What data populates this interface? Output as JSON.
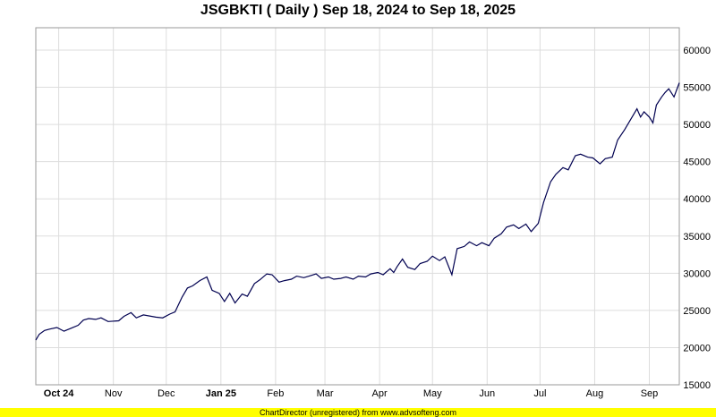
{
  "chart_data": {
    "type": "line",
    "title": "JSGBKTI ( Daily ) Sep 18, 2024 to Sep 18, 2025",
    "xlabel": "",
    "ylabel": "",
    "x_range": [
      "2024-09-18",
      "2025-09-18"
    ],
    "ylim": [
      15000,
      63000
    ],
    "y_ticks": [
      15000,
      20000,
      25000,
      30000,
      35000,
      40000,
      45000,
      50000,
      55000,
      60000
    ],
    "x_ticks": [
      {
        "label": "Oct 24",
        "date": "2024-10-01",
        "bold": true
      },
      {
        "label": "Nov",
        "date": "2024-11-01",
        "bold": false
      },
      {
        "label": "Dec",
        "date": "2024-12-01",
        "bold": false
      },
      {
        "label": "Jan 25",
        "date": "2025-01-01",
        "bold": true
      },
      {
        "label": "Feb",
        "date": "2025-02-01",
        "bold": false
      },
      {
        "label": "Mar",
        "date": "2025-03-01",
        "bold": false
      },
      {
        "label": "Apr",
        "date": "2025-04-01",
        "bold": false
      },
      {
        "label": "May",
        "date": "2025-05-01",
        "bold": false
      },
      {
        "label": "Jun",
        "date": "2025-06-01",
        "bold": false
      },
      {
        "label": "Jul",
        "date": "2025-07-01",
        "bold": false
      },
      {
        "label": "Aug",
        "date": "2025-08-01",
        "bold": false
      },
      {
        "label": "Sep",
        "date": "2025-09-01",
        "bold": false
      }
    ],
    "grid": true,
    "line_color": "#000050",
    "series": [
      {
        "points": [
          [
            "2024-09-18",
            21000
          ],
          [
            "2024-09-20",
            21800
          ],
          [
            "2024-09-23",
            22300
          ],
          [
            "2024-09-26",
            22500
          ],
          [
            "2024-09-30",
            22700
          ],
          [
            "2024-10-04",
            22200
          ],
          [
            "2024-10-08",
            22600
          ],
          [
            "2024-10-12",
            23000
          ],
          [
            "2024-10-15",
            23700
          ],
          [
            "2024-10-18",
            23900
          ],
          [
            "2024-10-22",
            23800
          ],
          [
            "2024-10-25",
            24000
          ],
          [
            "2024-10-29",
            23500
          ],
          [
            "2024-11-04",
            23600
          ],
          [
            "2024-11-07",
            24200
          ],
          [
            "2024-11-11",
            24700
          ],
          [
            "2024-11-14",
            24000
          ],
          [
            "2024-11-18",
            24400
          ],
          [
            "2024-11-25",
            24100
          ],
          [
            "2024-11-29",
            24000
          ],
          [
            "2024-12-03",
            24500
          ],
          [
            "2024-12-06",
            24800
          ],
          [
            "2024-12-10",
            26800
          ],
          [
            "2024-12-13",
            28000
          ],
          [
            "2024-12-16",
            28300
          ],
          [
            "2024-12-20",
            29000
          ],
          [
            "2024-12-24",
            29500
          ],
          [
            "2024-12-27",
            27700
          ],
          [
            "2024-12-31",
            27300
          ],
          [
            "2025-01-03",
            26200
          ],
          [
            "2025-01-06",
            27300
          ],
          [
            "2025-01-09",
            26000
          ],
          [
            "2025-01-13",
            27200
          ],
          [
            "2025-01-16",
            26900
          ],
          [
            "2025-01-20",
            28600
          ],
          [
            "2025-01-23",
            29100
          ],
          [
            "2025-01-27",
            29900
          ],
          [
            "2025-01-30",
            29800
          ],
          [
            "2025-02-03",
            28800
          ],
          [
            "2025-02-06",
            29000
          ],
          [
            "2025-02-10",
            29200
          ],
          [
            "2025-02-13",
            29600
          ],
          [
            "2025-02-17",
            29400
          ],
          [
            "2025-02-20",
            29600
          ],
          [
            "2025-02-24",
            29900
          ],
          [
            "2025-02-27",
            29300
          ],
          [
            "2025-03-03",
            29500
          ],
          [
            "2025-03-06",
            29200
          ],
          [
            "2025-03-10",
            29300
          ],
          [
            "2025-03-13",
            29500
          ],
          [
            "2025-03-17",
            29200
          ],
          [
            "2025-03-20",
            29600
          ],
          [
            "2025-03-24",
            29500
          ],
          [
            "2025-03-27",
            29900
          ],
          [
            "2025-03-31",
            30100
          ],
          [
            "2025-04-03",
            29800
          ],
          [
            "2025-04-07",
            30600
          ],
          [
            "2025-04-09",
            30100
          ],
          [
            "2025-04-11",
            30900
          ],
          [
            "2025-04-14",
            31900
          ],
          [
            "2025-04-17",
            30800
          ],
          [
            "2025-04-21",
            30500
          ],
          [
            "2025-04-24",
            31300
          ],
          [
            "2025-04-28",
            31600
          ],
          [
            "2025-05-01",
            32300
          ],
          [
            "2025-05-05",
            31700
          ],
          [
            "2025-05-08",
            32200
          ],
          [
            "2025-05-12",
            29800
          ],
          [
            "2025-05-15",
            33300
          ],
          [
            "2025-05-19",
            33600
          ],
          [
            "2025-05-22",
            34200
          ],
          [
            "2025-05-26",
            33700
          ],
          [
            "2025-05-29",
            34100
          ],
          [
            "2025-06-02",
            33700
          ],
          [
            "2025-06-05",
            34700
          ],
          [
            "2025-06-09",
            35300
          ],
          [
            "2025-06-12",
            36200
          ],
          [
            "2025-06-16",
            36500
          ],
          [
            "2025-06-19",
            36000
          ],
          [
            "2025-06-23",
            36600
          ],
          [
            "2025-06-26",
            35600
          ],
          [
            "2025-06-30",
            36700
          ],
          [
            "2025-07-03",
            39500
          ],
          [
            "2025-07-07",
            42300
          ],
          [
            "2025-07-10",
            43300
          ],
          [
            "2025-07-14",
            44200
          ],
          [
            "2025-07-17",
            43900
          ],
          [
            "2025-07-21",
            45800
          ],
          [
            "2025-07-24",
            46000
          ],
          [
            "2025-07-28",
            45600
          ],
          [
            "2025-07-31",
            45500
          ],
          [
            "2025-08-04",
            44700
          ],
          [
            "2025-08-07",
            45400
          ],
          [
            "2025-08-11",
            45600
          ],
          [
            "2025-08-14",
            47900
          ],
          [
            "2025-08-18",
            49300
          ],
          [
            "2025-08-21",
            50500
          ],
          [
            "2025-08-25",
            52100
          ],
          [
            "2025-08-27",
            51000
          ],
          [
            "2025-08-29",
            51700
          ],
          [
            "2025-09-01",
            51000
          ],
          [
            "2025-09-03",
            50200
          ],
          [
            "2025-09-05",
            52600
          ],
          [
            "2025-09-08",
            53700
          ],
          [
            "2025-09-10",
            54300
          ],
          [
            "2025-09-12",
            54800
          ],
          [
            "2025-09-15",
            53700
          ],
          [
            "2025-09-18",
            55600
          ]
        ]
      }
    ]
  },
  "footer": {
    "text": "ChartDirector (unregistered) from www.advsofteng.com"
  }
}
